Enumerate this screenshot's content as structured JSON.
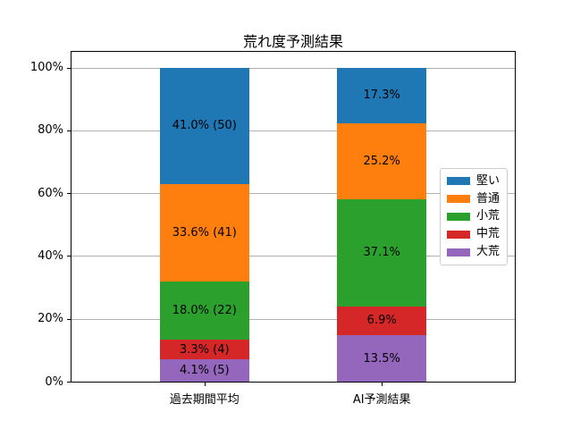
{
  "chart_data": {
    "type": "bar",
    "stacked": true,
    "title": "荒れ度予測結果",
    "categories": [
      "過去期間平均",
      "AI予測結果"
    ],
    "series": [
      {
        "name": "堅い",
        "color": "#1f77b4",
        "values": [
          41.0,
          17.3
        ],
        "counts": [
          50,
          null
        ],
        "labels": [
          "41.0% (50)",
          "17.3%"
        ]
      },
      {
        "name": "普通",
        "color": "#ff7f0e",
        "values": [
          33.6,
          25.2
        ],
        "counts": [
          41,
          null
        ],
        "labels": [
          "33.6% (41)",
          "25.2%"
        ]
      },
      {
        "name": "小荒",
        "color": "#2ca02c",
        "values": [
          18.0,
          37.1
        ],
        "counts": [
          22,
          null
        ],
        "labels": [
          "18.0% (22)",
          "37.1%"
        ]
      },
      {
        "name": "中荒",
        "color": "#d62728",
        "values": [
          3.3,
          6.9
        ],
        "counts": [
          4,
          null
        ],
        "labels": [
          "3.3% (4)",
          "6.9%"
        ]
      },
      {
        "name": "大荒",
        "color": "#9467bd",
        "values": [
          4.1,
          13.5
        ],
        "counts": [
          5,
          null
        ],
        "labels": [
          "4.1% (5)",
          "13.5%"
        ]
      }
    ],
    "stack_order_bottom_to_top": [
      "大荒",
      "中荒",
      "小荒",
      "普通",
      "堅い"
    ],
    "xlabel": "",
    "ylabel": "",
    "ylim": [
      0,
      105
    ],
    "ytick_values": [
      0,
      20,
      40,
      60,
      80,
      100
    ],
    "ytick_labels": [
      "0%",
      "20%",
      "40%",
      "60%",
      "80%",
      "100%"
    ],
    "grid": "horizontal",
    "legend": {
      "position": "center-right-inside",
      "entries": [
        "堅い",
        "普通",
        "小荒",
        "中荒",
        "大荒"
      ]
    },
    "colors": {
      "grid": "#b0b0b0",
      "spine": "#000000",
      "background": "#ffffff",
      "label_text": "#000000",
      "legend_border": "#cccccc"
    }
  }
}
